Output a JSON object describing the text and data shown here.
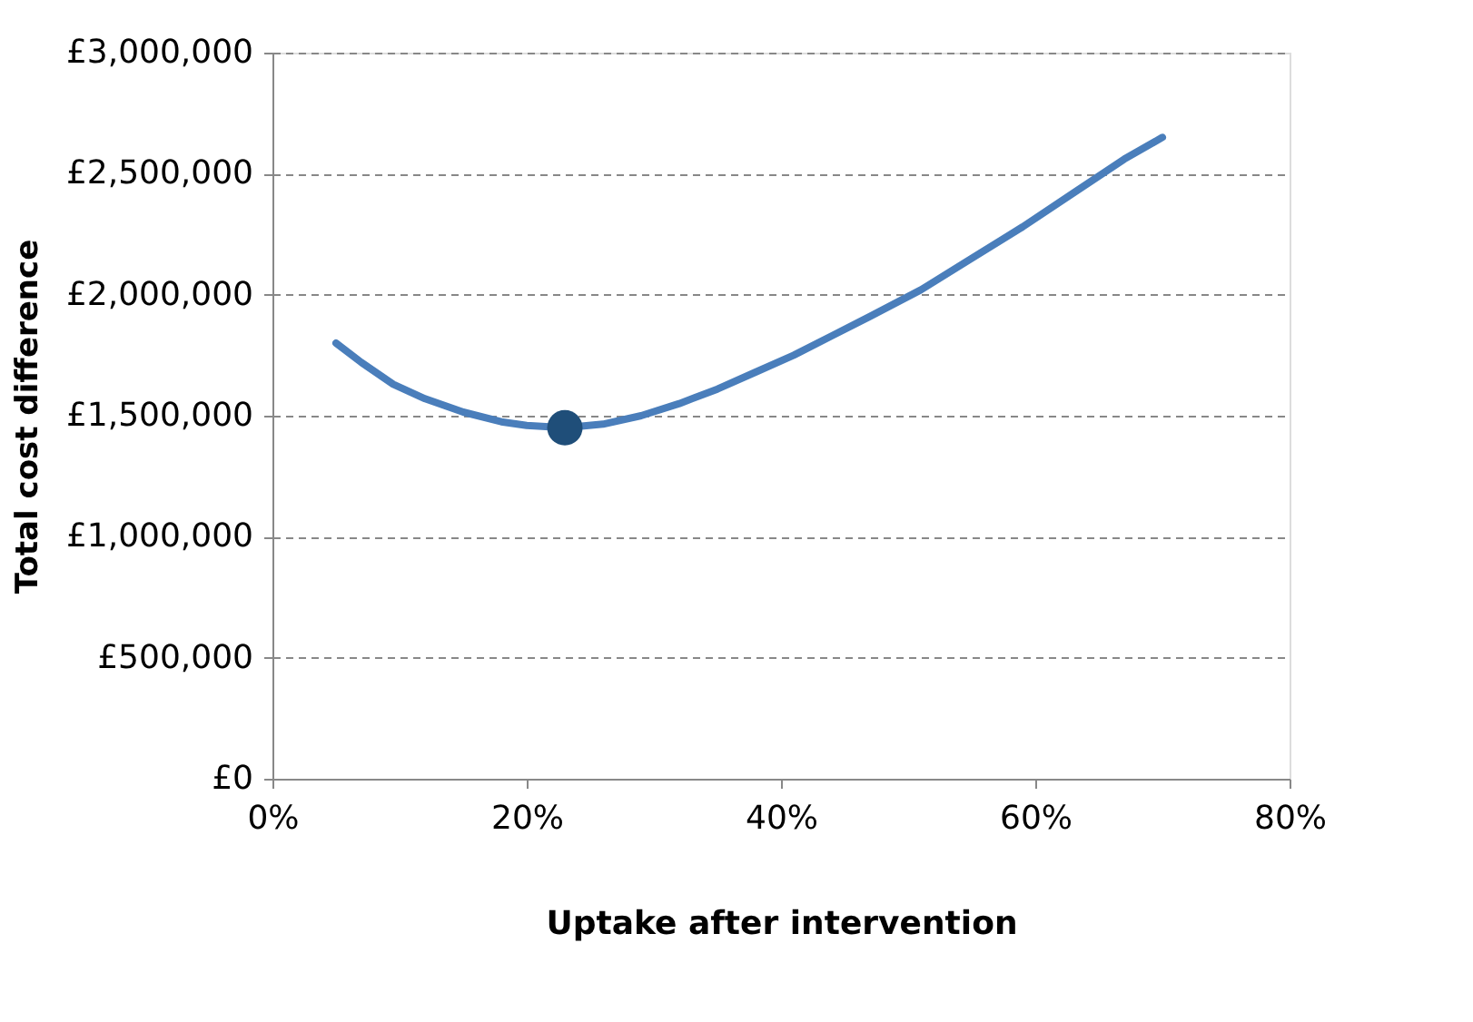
{
  "chart_data": {
    "type": "line",
    "xlabel": "Uptake after intervention",
    "ylabel": "Total cost difference",
    "xlim": [
      0,
      80
    ],
    "xticks": [
      {
        "value": 0,
        "label": "0%"
      },
      {
        "value": 20,
        "label": "20%"
      },
      {
        "value": 40,
        "label": "40%"
      },
      {
        "value": 60,
        "label": "60%"
      },
      {
        "value": 80,
        "label": "80%"
      }
    ],
    "ylim": [
      0,
      3000000
    ],
    "yticks": [
      {
        "value": 0,
        "label": "£0"
      },
      {
        "value": 500000,
        "label": "£500,000"
      },
      {
        "value": 1000000,
        "label": "£1,000,000"
      },
      {
        "value": 1500000,
        "label": "£1,500,000"
      },
      {
        "value": 2000000,
        "label": "£2,000,000"
      },
      {
        "value": 2500000,
        "label": "£2,500,000"
      },
      {
        "value": 3000000,
        "label": "£3,000,000"
      }
    ],
    "grid": "y",
    "line_style": "solid",
    "series": [
      {
        "color": "#4a7ebb",
        "marker": "none",
        "x": [
          5,
          7,
          9.5,
          12,
          15,
          18,
          20,
          23,
          26,
          29,
          32,
          35,
          38,
          41,
          44,
          47,
          51,
          55,
          59,
          63,
          67,
          70
        ],
        "values": [
          1800000,
          1720000,
          1630000,
          1570000,
          1515000,
          1475000,
          1460000,
          1450000,
          1465000,
          1500000,
          1550000,
          1610000,
          1680000,
          1750000,
          1830000,
          1910000,
          2020000,
          2150000,
          2280000,
          2420000,
          2560000,
          2650000
        ]
      },
      {
        "type": "scatter",
        "color": "#1f4e79",
        "marker": "circle",
        "x": [
          23
        ],
        "values": [
          1450000
        ]
      }
    ]
  }
}
